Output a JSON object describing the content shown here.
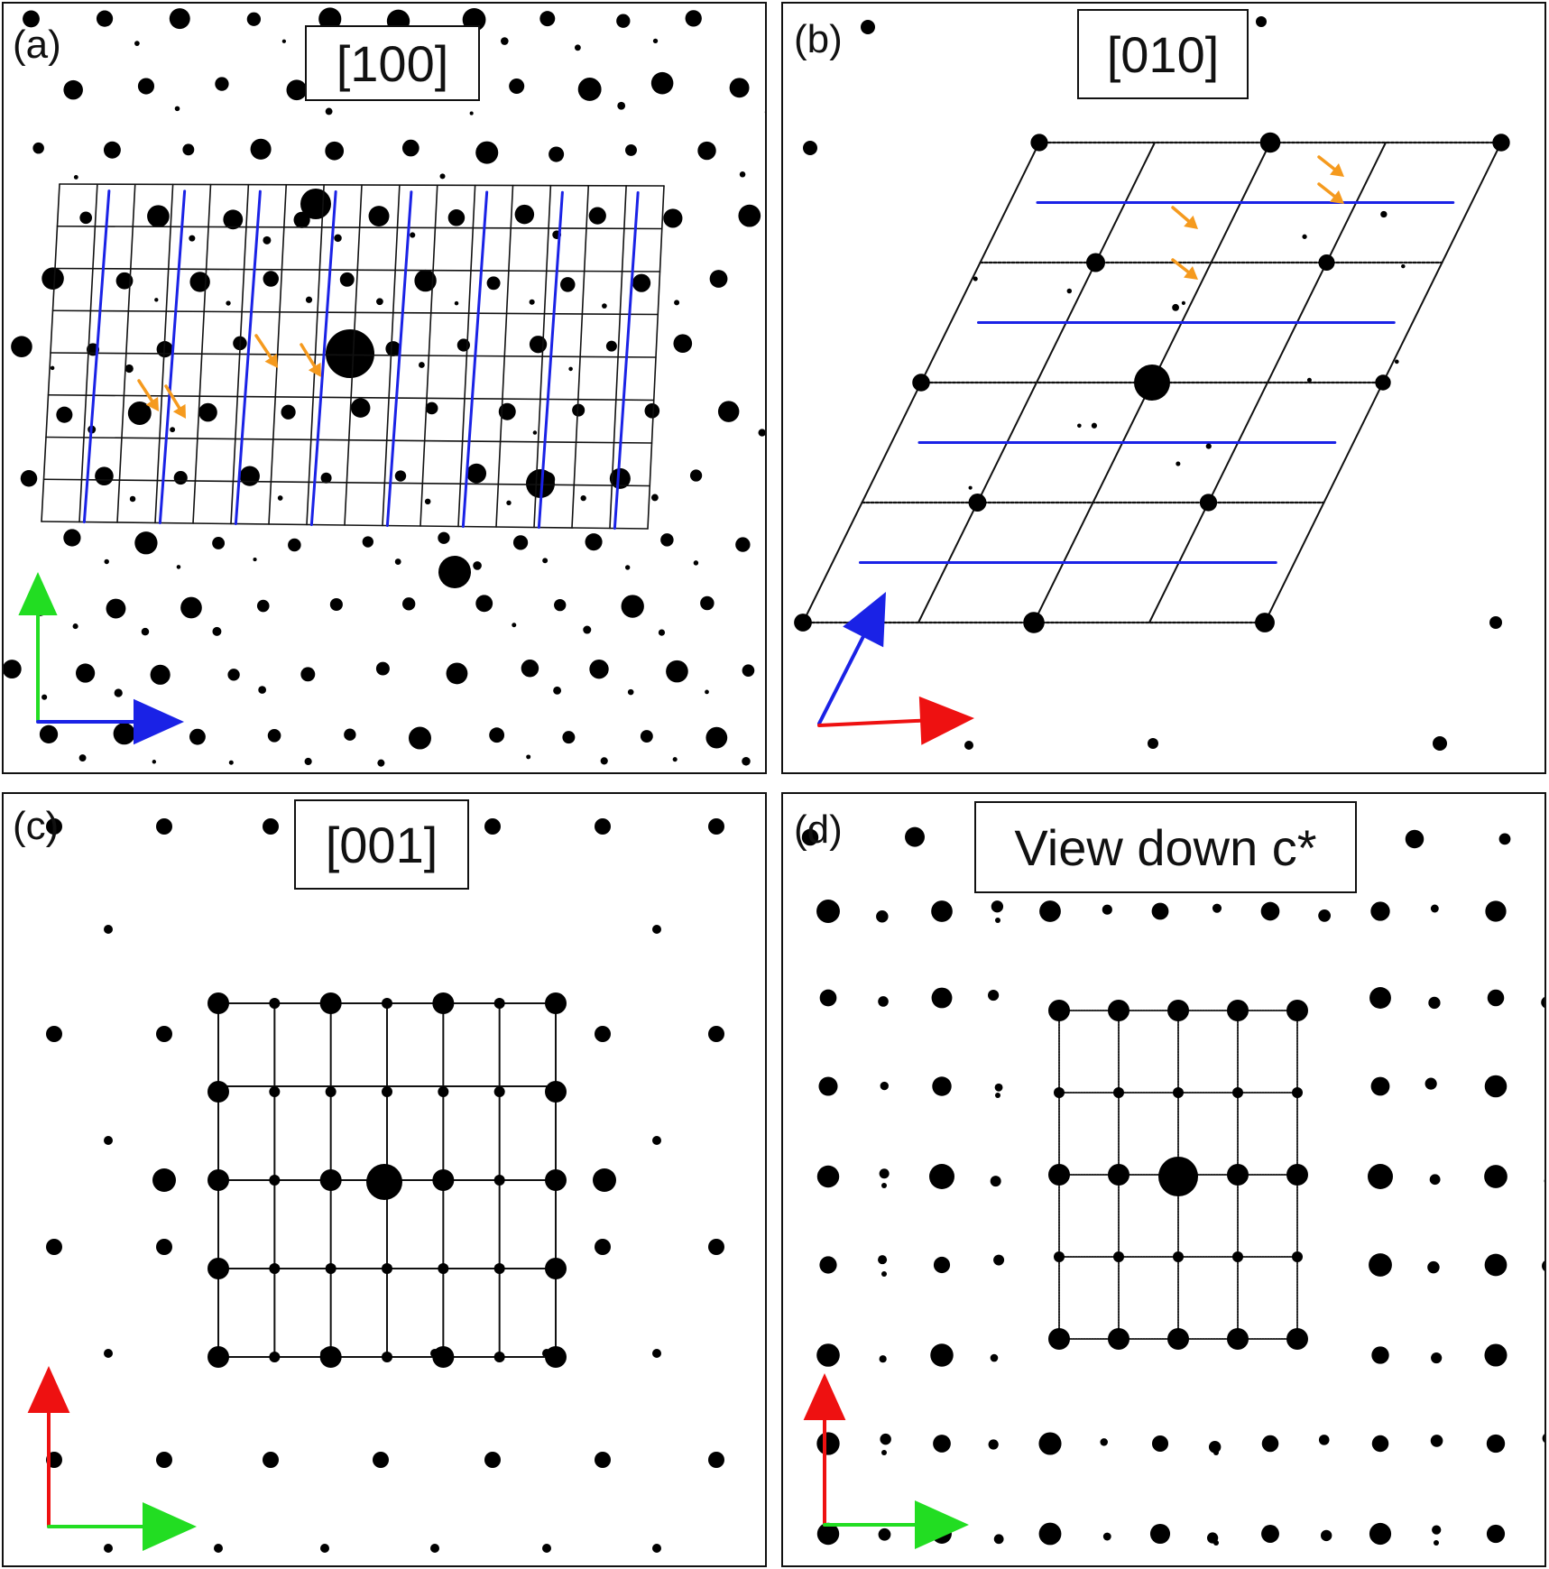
{
  "panels": [
    {
      "id": "a",
      "label": "(a)",
      "zone_axis": "[100]",
      "axes": {
        "up_color": "#22dd22",
        "right_color": "#1a22e6"
      }
    },
    {
      "id": "b",
      "label": "(b)",
      "zone_axis": "[010]",
      "axes": {
        "up_color": "#1a22e6",
        "right_color": "#ee1111"
      }
    },
    {
      "id": "c",
      "label": "(c)",
      "zone_axis": "[001]",
      "axes": {
        "up_color": "#ee1111",
        "right_color": "#22dd22"
      }
    },
    {
      "id": "d",
      "label": "(d)",
      "zone_axis": "View down c*",
      "axes": {
        "up_color": "#ee1111",
        "right_color": "#22dd22"
      }
    }
  ],
  "colors": {
    "grid": "#111111",
    "highlight_lines": "#1a22e6",
    "arrows": "#f59a1e",
    "spots": "#000000"
  }
}
